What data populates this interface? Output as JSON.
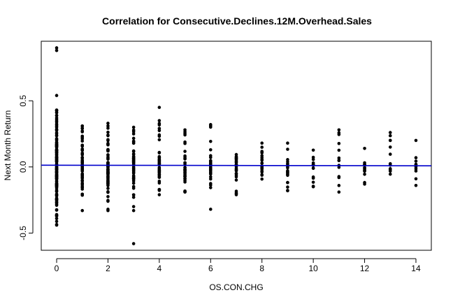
{
  "chart_data": {
    "type": "scatter",
    "title": "Correlation for Consecutive.Declines.12M.Overhead.Sales",
    "xlabel": "OS.CON.CHG",
    "ylabel": "Next Month Return",
    "xlim": [
      -0.6,
      14.6
    ],
    "ylim": [
      -0.63,
      0.95
    ],
    "x_ticks": [
      0,
      2,
      4,
      6,
      8,
      10,
      12,
      14
    ],
    "x_tick_labels": [
      "0",
      "2",
      "4",
      "6",
      "8",
      "10",
      "12",
      "14"
    ],
    "y_ticks": [
      -0.5,
      0.0,
      0.5
    ],
    "y_tick_labels": [
      "-0.5",
      "0.0",
      "0.5"
    ],
    "point_color": "#000000",
    "regression_line": {
      "color": "#0000cc",
      "intercept": 0.013,
      "slope": -0.0003
    },
    "grid": false,
    "series": [
      {
        "values_by_x": [
          {
            "x": 0,
            "range": [
              -0.44,
              0.43
            ],
            "extras": [
              0.9,
              0.88,
              0.54,
              0.43,
              0.41,
              0.39,
              -0.39,
              -0.44
            ],
            "density": 140
          },
          {
            "x": 1,
            "range": [
              -0.22,
              0.31
            ],
            "extras": [
              -0.33,
              0.31
            ],
            "density": 70
          },
          {
            "x": 2,
            "range": [
              -0.26,
              0.33
            ],
            "extras": [
              -0.33,
              -0.32,
              0.33,
              0.31
            ],
            "density": 70
          },
          {
            "x": 3,
            "range": [
              -0.24,
              0.3
            ],
            "extras": [
              -0.58,
              -0.33,
              -0.3,
              0.3
            ],
            "density": 55
          },
          {
            "x": 4,
            "range": [
              -0.22,
              0.35
            ],
            "extras": [
              0.45,
              0.35,
              -0.21
            ],
            "density": 45
          },
          {
            "x": 5,
            "range": [
              -0.19,
              0.28
            ],
            "extras": [
              0.28,
              -0.19
            ],
            "density": 35
          },
          {
            "x": 6,
            "range": [
              -0.18,
              0.32
            ],
            "extras": [
              0.32,
              -0.32
            ],
            "density": 30
          },
          {
            "x": 7,
            "range": [
              -0.21,
              0.16
            ],
            "extras": [
              -0.21
            ],
            "density": 25
          },
          {
            "x": 8,
            "range": [
              -0.15,
              0.18
            ],
            "extras": [
              0.18
            ],
            "density": 22
          },
          {
            "x": 9,
            "range": [
              -0.18,
              0.18
            ],
            "extras": [
              0.18,
              -0.18
            ],
            "density": 18
          },
          {
            "x": 10,
            "range": [
              -0.15,
              0.13
            ],
            "extras": [
              -0.15
            ],
            "density": 15
          },
          {
            "x": 11,
            "range": [
              -0.19,
              0.28
            ],
            "extras": [
              0.28,
              -0.19
            ],
            "density": 12
          },
          {
            "x": 12,
            "range": [
              -0.13,
              0.14
            ],
            "extras": [
              0.14,
              -0.13
            ],
            "density": 12
          },
          {
            "x": 13,
            "range": [
              -0.09,
              0.26
            ],
            "extras": [
              0.26,
              0.15
            ],
            "density": 10
          },
          {
            "x": 14,
            "range": [
              -0.14,
              0.2
            ],
            "extras": [
              0.2,
              -0.14,
              -0.09,
              0.02,
              0.0
            ],
            "density": 5
          }
        ]
      }
    ]
  }
}
